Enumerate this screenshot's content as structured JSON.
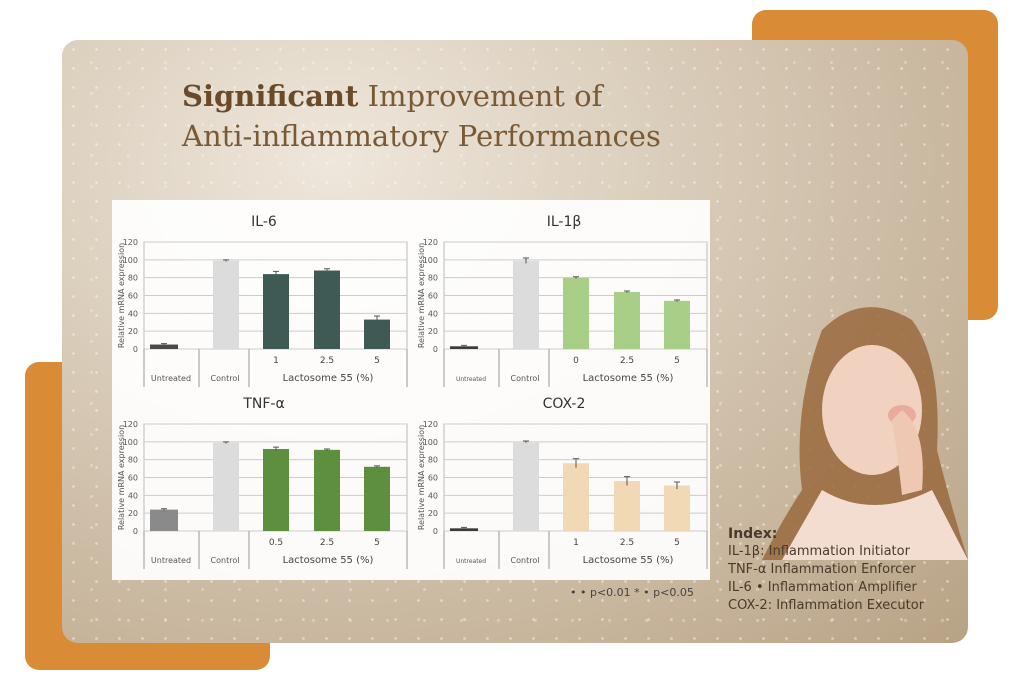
{
  "title": {
    "line1_bold": "Significant",
    "line1_rest": "Improvement of",
    "line2": "Anti-inflammatory Performances"
  },
  "colors": {
    "orange": "#d98b35",
    "untreated": "#4a4a4a",
    "control": "#dcdcdc"
  },
  "chart_data": [
    {
      "type": "bar",
      "title": "IL-6",
      "ylabel": "Relative mRNA expression",
      "ylim": [
        0,
        120
      ],
      "yticks": [
        0,
        20,
        40,
        60,
        80,
        100,
        120
      ],
      "categories": [
        "Untreated",
        "Control",
        "1",
        "2.5",
        "5"
      ],
      "values": [
        5,
        99,
        84,
        88,
        33
      ],
      "errors": [
        1,
        1,
        3,
        2,
        4
      ],
      "group_label": "Lactosome 55 (%)",
      "dose_color": "#3f5a55",
      "untreated_color": "#4a4a4a"
    },
    {
      "type": "bar",
      "title": "IL-1β",
      "ylabel": "Relative mRNA expression",
      "ylim": [
        0,
        120
      ],
      "yticks": [
        0,
        20,
        40,
        60,
        80,
        100,
        120
      ],
      "categories": [
        "Untreated",
        "Control",
        "0",
        "2.5",
        "5"
      ],
      "values": [
        3,
        99,
        80,
        64,
        54
      ],
      "errors": [
        1,
        3,
        1,
        1,
        1
      ],
      "group_label": "Lactosome 55 (%)",
      "dose_color": "#a8cf87",
      "untreated_color": "#3a3a3a"
    },
    {
      "type": "bar",
      "title": "TNF-α",
      "ylabel": "Relative mRNA expression",
      "ylim": [
        0,
        120
      ],
      "yticks": [
        0,
        20,
        40,
        60,
        80,
        100,
        120
      ],
      "categories": [
        "Untreated",
        "Control",
        "0.5",
        "2.5",
        "5"
      ],
      "values": [
        24,
        99,
        92,
        91,
        72
      ],
      "errors": [
        1,
        1,
        2,
        1,
        1
      ],
      "group_label": "Lactosome 55 (%)",
      "dose_color": "#5e8f3e",
      "untreated_color": "#8a8a8a"
    },
    {
      "type": "bar",
      "title": "COX-2",
      "ylabel": "Relative mRNA expression",
      "ylim": [
        0,
        120
      ],
      "yticks": [
        0,
        20,
        40,
        60,
        80,
        100,
        120
      ],
      "categories": [
        "Untreated",
        "Control",
        "1",
        "2.5",
        "5"
      ],
      "values": [
        3,
        100,
        76,
        56,
        51
      ],
      "errors": [
        1,
        1,
        5,
        5,
        4
      ],
      "group_label": "Lactosome 55 (%)",
      "dose_color": "#f2d9b5",
      "untreated_color": "#3a3a3a"
    }
  ],
  "significance_note": "• • p<0.01   * • p<0.05",
  "index": {
    "heading": "Index:",
    "items": [
      "IL-1β: Inflammation Initiator",
      "TNF-α Inflammation Enforcer",
      "IL-6 • Inflammation Amplifier",
      "COX-2: Inflammation Executor"
    ]
  }
}
